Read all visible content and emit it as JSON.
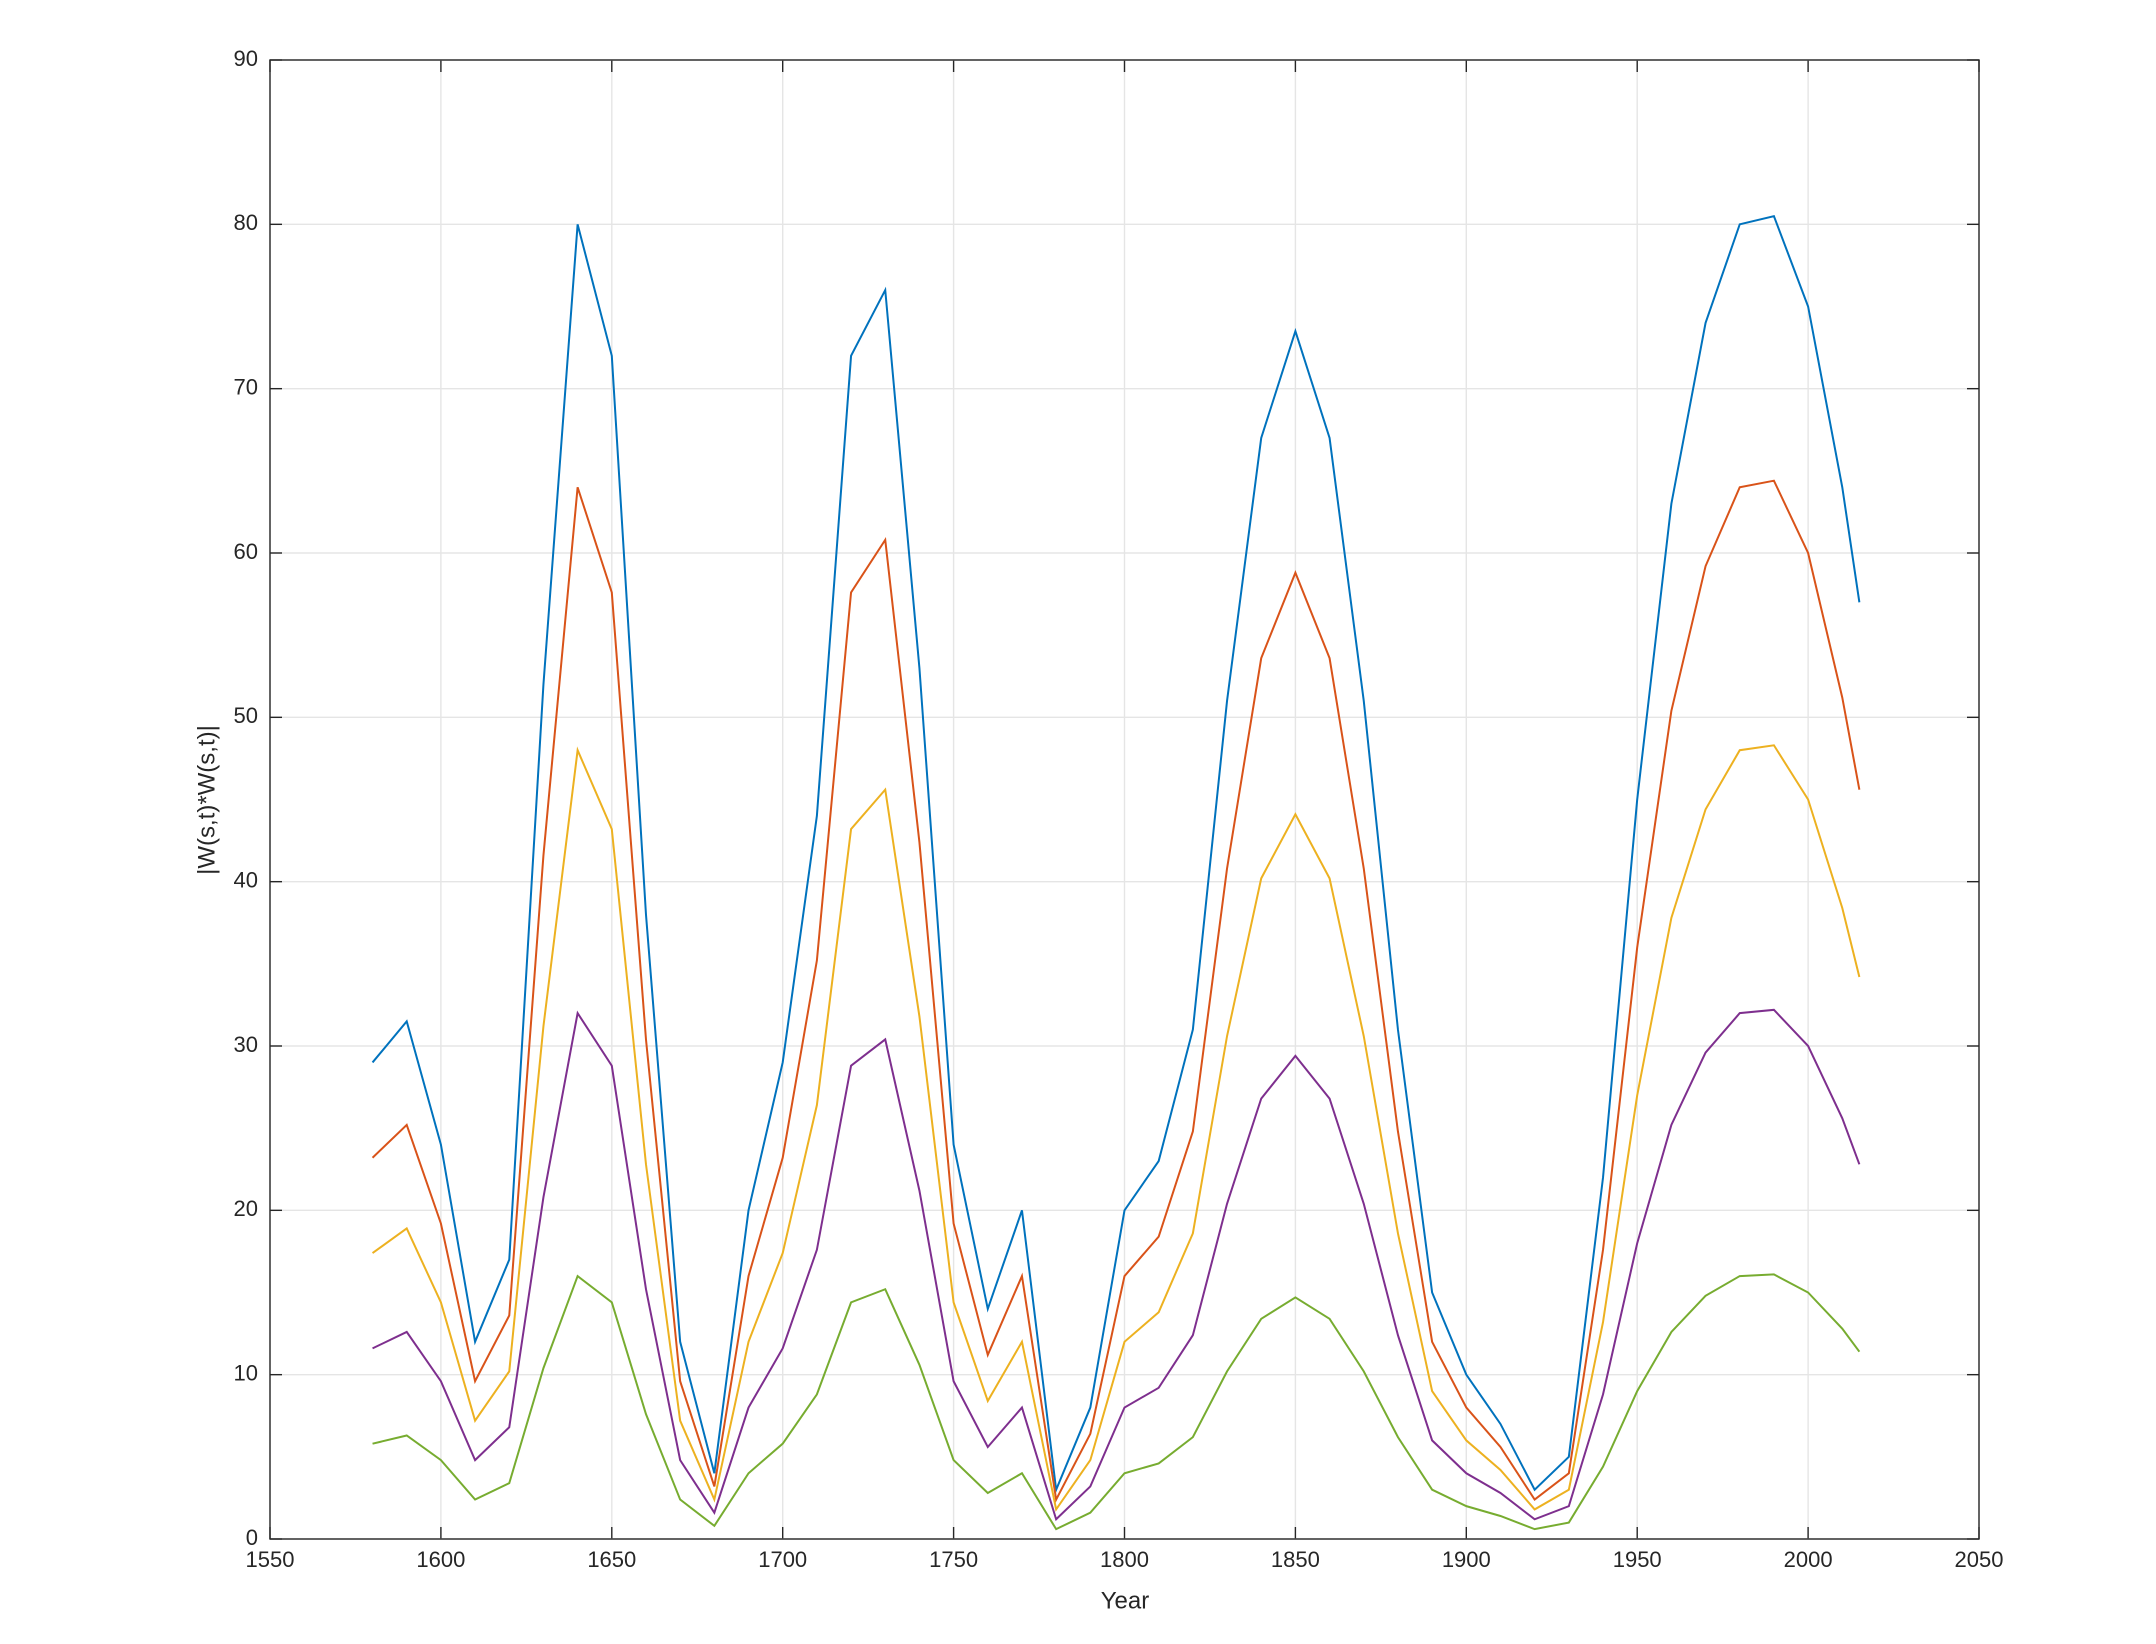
{
  "chart_data": {
    "type": "line",
    "xlabel": "Year",
    "ylabel": "|W(s,t)*W(s,t)|",
    "x": [
      1580,
      1590,
      1600,
      1610,
      1620,
      1630,
      1640,
      1650,
      1660,
      1670,
      1680,
      1690,
      1700,
      1710,
      1720,
      1730,
      1740,
      1750,
      1760,
      1770,
      1780,
      1790,
      1800,
      1810,
      1820,
      1830,
      1840,
      1850,
      1860,
      1870,
      1880,
      1890,
      1900,
      1910,
      1920,
      1930,
      1940,
      1950,
      1960,
      1970,
      1980,
      1990,
      2000,
      2010,
      2015
    ],
    "series": [
      {
        "color": "#0072BD",
        "values": [
          29,
          31.5,
          24,
          12,
          17,
          52,
          80,
          72,
          38,
          12,
          4,
          20,
          29,
          44,
          72,
          76,
          53,
          24,
          14,
          20,
          3,
          8,
          20,
          23,
          31,
          51,
          67,
          73.5,
          67,
          51,
          31,
          15,
          10,
          7,
          3,
          5,
          22,
          45,
          63,
          74,
          80,
          80.5,
          75,
          64,
          57
        ]
      },
      {
        "color": "#D95319",
        "values": [
          23.2,
          25.2,
          19.2,
          9.6,
          13.6,
          41.6,
          64,
          57.6,
          30.4,
          9.6,
          3.2,
          16,
          23.2,
          35.2,
          57.6,
          60.8,
          42.4,
          19.2,
          11.2,
          16,
          2.4,
          6.4,
          16,
          18.4,
          24.8,
          40.8,
          53.6,
          58.8,
          53.6,
          40.8,
          24.8,
          12,
          8,
          5.6,
          2.4,
          4,
          17.6,
          36,
          50.4,
          59.2,
          64,
          64.4,
          60,
          51.2,
          45.6
        ]
      },
      {
        "color": "#EDB120",
        "values": [
          17.4,
          18.9,
          14.4,
          7.2,
          10.2,
          31.2,
          48,
          43.2,
          22.8,
          7.2,
          2.4,
          12,
          17.4,
          26.4,
          43.2,
          45.6,
          31.8,
          14.4,
          8.4,
          12,
          1.8,
          4.8,
          12,
          13.8,
          18.6,
          30.6,
          40.2,
          44.1,
          40.2,
          30.6,
          18.6,
          9,
          6,
          4.2,
          1.8,
          3,
          13.2,
          27,
          37.8,
          44.4,
          48,
          48.3,
          45,
          38.4,
          34.2
        ]
      },
      {
        "color": "#7E2F8E",
        "values": [
          11.6,
          12.6,
          9.6,
          4.8,
          6.8,
          20.8,
          32,
          28.8,
          15.2,
          4.8,
          1.6,
          8,
          11.6,
          17.6,
          28.8,
          30.4,
          21.2,
          9.6,
          5.6,
          8,
          1.2,
          3.2,
          8,
          9.2,
          12.4,
          20.4,
          26.8,
          29.4,
          26.8,
          20.4,
          12.4,
          6,
          4,
          2.8,
          1.2,
          2,
          8.8,
          18,
          25.2,
          29.6,
          32,
          32.2,
          30,
          25.6,
          22.8
        ]
      },
      {
        "color": "#77AC30",
        "values": [
          5.8,
          6.3,
          4.8,
          2.4,
          3.4,
          10.4,
          16,
          14.4,
          7.6,
          2.4,
          0.8,
          4,
          5.8,
          8.8,
          14.4,
          15.2,
          10.6,
          4.8,
          2.8,
          4,
          0.6,
          1.6,
          4,
          4.6,
          6.2,
          10.2,
          13.4,
          14.7,
          13.4,
          10.2,
          6.2,
          3,
          2,
          1.4,
          0.6,
          1,
          4.4,
          9,
          12.6,
          14.8,
          16,
          16.1,
          15,
          12.8,
          11.4
        ]
      }
    ],
    "xlim": [
      1550,
      2050
    ],
    "xticks": [
      1550,
      1600,
      1650,
      1700,
      1750,
      1800,
      1850,
      1900,
      1950,
      2000,
      2050
    ],
    "ylim": [
      0,
      90
    ],
    "yticks": [
      0,
      10,
      20,
      30,
      40,
      50,
      60,
      70,
      80,
      90
    ],
    "grid": true
  }
}
